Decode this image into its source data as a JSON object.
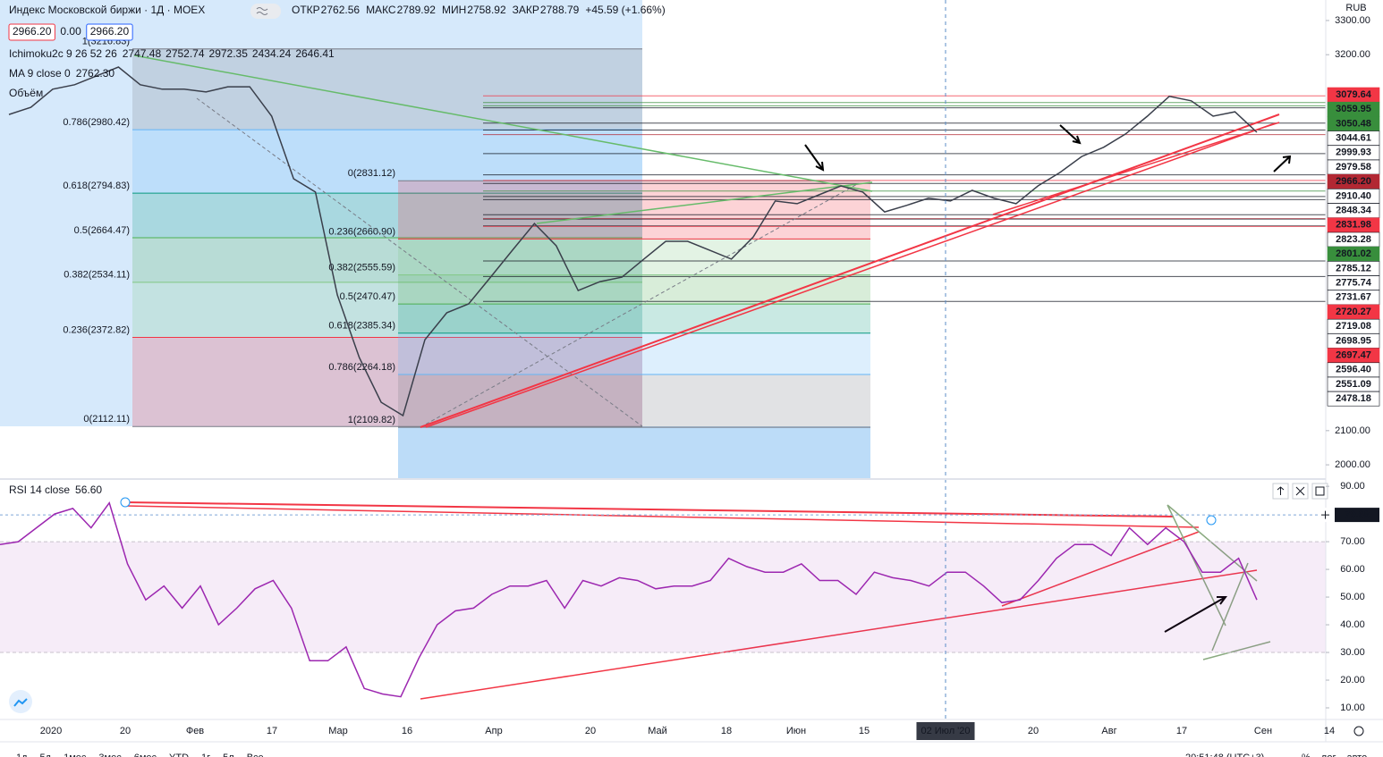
{
  "header": {
    "ohlc": [
      {
        "label": "ОТКР",
        "value": "2762.56"
      },
      {
        "label": "МАКС",
        "value": "2789.92"
      },
      {
        "label": "МИН",
        "value": "2758.92"
      },
      {
        "label": "ЗАКР",
        "value": "2788.79"
      }
    ],
    "change": "+45.59 (+1.66%)",
    "bid": "2966.20",
    "spread": "0.00",
    "ask": "2966.20",
    "currency": "RUB"
  },
  "indicators": {
    "ichimoku": {
      "name": "Ichimoku2c 9 26 52 26",
      "values": [
        {
          "text": "2747.48",
          "color": "#e53935"
        },
        {
          "text": "2752.74",
          "color": "#2962ff"
        },
        {
          "text": "2972.35",
          "color": "#388e3c"
        },
        {
          "text": "2434.24",
          "color": "#e53935"
        },
        {
          "text": "2646.41",
          "color": "#388e3c"
        }
      ]
    },
    "ma": {
      "name": "MA 9 close 0",
      "value": "2762.30",
      "color": "#2962ff"
    },
    "volume": "Объём"
  },
  "chart_data": [
    {
      "type": "line",
      "title": "Индекс Московской биржи · 1Д · MOEX",
      "color": "#3a3f4b",
      "values": [
        3025,
        3046,
        3099,
        3112,
        3138,
        3164,
        3112,
        3099,
        3099,
        3091,
        3106,
        3106,
        3020,
        2837,
        2798,
        2497,
        2314,
        2183,
        2144,
        2366,
        2445,
        2471,
        2549,
        2628,
        2706,
        2641,
        2510,
        2536,
        2549,
        2602,
        2654,
        2654,
        2628,
        2602,
        2667,
        2772,
        2764,
        2790,
        2816,
        2798,
        2740,
        2759,
        2780,
        2772,
        2803,
        2780,
        2764,
        2816,
        2855,
        2902,
        2929,
        2968,
        3020,
        3078,
        3065,
        3020,
        3033,
        2973
      ],
      "ylim": [
        1961,
        3360
      ],
      "yticks": [
        {
          "value": 2000,
          "label": "2000.00"
        },
        {
          "value": 2100,
          "label": "2100.00"
        },
        {
          "value": 3200,
          "label": "3200.00"
        },
        {
          "value": 3300,
          "label": "3300.00"
        }
      ],
      "levels": [
        {
          "value": 3079.64,
          "color": "#f23645"
        },
        {
          "value": 3059.95,
          "color": "#388e3c"
        },
        {
          "value": 3050.48,
          "color": "#388e3c"
        },
        {
          "value": 3044.61,
          "color": "#131722"
        },
        {
          "value": 2999.93,
          "color": "#131722"
        },
        {
          "value": 2979.58,
          "color": "#131722"
        },
        {
          "value": 2966.2,
          "label": "2966.20",
          "color": "#b22833"
        },
        {
          "value": 2910.4,
          "label": "2910.40",
          "color": "#131722"
        },
        {
          "value": 2848.34,
          "color": "#131722"
        },
        {
          "value": 2831.98,
          "color": "#f23645"
        },
        {
          "value": 2823.28,
          "color": "#131722"
        },
        {
          "value": 2801.02,
          "color": "#388e3c"
        },
        {
          "value": 2785.12,
          "color": "#131722"
        },
        {
          "value": 2775.74,
          "color": "#131722"
        },
        {
          "value": 2731.67,
          "color": "#131722"
        },
        {
          "value": 2720.27,
          "color": "#f23645"
        },
        {
          "value": 2719.08,
          "color": "#131722"
        },
        {
          "value": 2698.95,
          "color": "#131722"
        },
        {
          "value": 2697.47,
          "color": "#f23645"
        },
        {
          "value": 2596.4,
          "label": "2596.40",
          "color": "#131722"
        },
        {
          "value": 2551.09,
          "color": "#131722"
        },
        {
          "value": 2478.18,
          "color": "#131722"
        }
      ],
      "fibs": [
        {
          "levels": [
            {
              "value": 3216.83,
              "label": "1(3216.83)",
              "color": "#787b86"
            },
            {
              "value": 2980.42,
              "label": "0.786(2980.42)",
              "color": "#64b5f6"
            },
            {
              "value": 2794.83,
              "label": "0.618(2794.83)",
              "color": "#089981"
            },
            {
              "value": 2664.47,
              "label": "0.5(2664.47)",
              "color": "#4caf50"
            },
            {
              "value": 2534.11,
              "label": "0.382(2534.11)",
              "color": "#81c784"
            },
            {
              "value": 2372.82,
              "label": "0.236(2372.82)",
              "color": "#f23645"
            },
            {
              "value": 2112.11,
              "label": "0(2112.11)",
              "color": "#787b86"
            }
          ]
        },
        {
          "levels": [
            {
              "value": 2109.82,
              "label": "1(2109.82)",
              "color": "#787b86"
            },
            {
              "value": 2264.18,
              "label": "0.786(2264.18)",
              "color": "#64b5f6"
            },
            {
              "value": 2385.34,
              "label": "0.618(2385.34)",
              "color": "#089981"
            },
            {
              "value": 2470.47,
              "label": "0.5(2470.47)",
              "color": "#4caf50"
            },
            {
              "value": 2555.59,
              "label": "0.382(2555.59)",
              "color": "#81c784"
            },
            {
              "value": 2660.9,
              "label": "0.236(2660.90)",
              "color": "#f23645"
            },
            {
              "value": 2831.12,
              "label": "0(2831.12)",
              "color": "#787b86"
            }
          ]
        }
      ]
    },
    {
      "type": "line",
      "title": "RSI 14 close",
      "last": "56.60",
      "color": "#9c27b0",
      "values": [
        69,
        70,
        75,
        80,
        82,
        75,
        84,
        62,
        49,
        54,
        46,
        54,
        40,
        46,
        53,
        56,
        46,
        27,
        27,
        32,
        17,
        15,
        14,
        28,
        40,
        45,
        46,
        51,
        54,
        54,
        56,
        46,
        56,
        54,
        57,
        56,
        53,
        54,
        54,
        56,
        64,
        61,
        59,
        59,
        62,
        56,
        56,
        51,
        59,
        57,
        56,
        54,
        59,
        59,
        54,
        48,
        49,
        56,
        64,
        69,
        69,
        65,
        75,
        69,
        75,
        70,
        59,
        59,
        64,
        49
      ],
      "ylim": [
        5.8,
        92.3
      ],
      "yticks": [
        {
          "value": 10,
          "label": "10.00"
        },
        {
          "value": 20,
          "label": "20.00"
        },
        {
          "value": 30,
          "label": "30.00"
        },
        {
          "value": 40,
          "label": "40.00"
        },
        {
          "value": 50,
          "label": "50.00"
        },
        {
          "value": 60,
          "label": "60.00"
        },
        {
          "value": 70,
          "label": "70.00"
        },
        {
          "value": 80,
          "label": "80.00"
        },
        {
          "value": 90,
          "label": "90.00"
        }
      ],
      "band": [
        30,
        70
      ],
      "marker": 79.68
    }
  ],
  "time_axis": [
    "2020",
    "20",
    "Фев",
    "17",
    "Мар",
    "16",
    "Апр",
    "20",
    "Май",
    "18",
    "Июн",
    "15",
    "02 Июл '20",
    "20",
    "Авг",
    "17",
    "Сен",
    "14"
  ],
  "toolbar": {
    "ranges": [
      "1д",
      "5д",
      "1мес",
      "3мес",
      "6мес",
      "YTD",
      "1г",
      "5л",
      "Все"
    ],
    "clock": "20:51:48 (UTC+3)",
    "options": [
      "%",
      "лог",
      "авто"
    ]
  }
}
